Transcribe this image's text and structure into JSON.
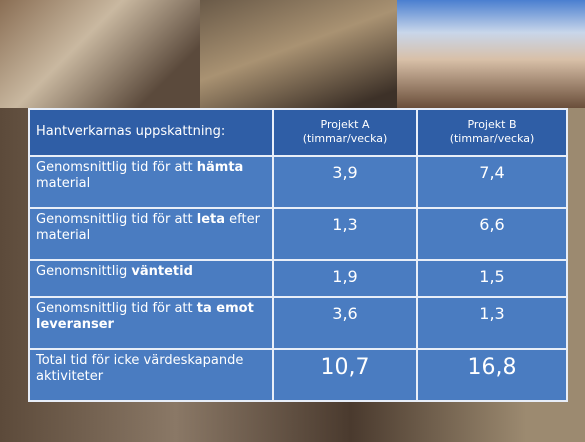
{
  "table": {
    "header": [
      "Hantverkarnas uppskattning:",
      "Projekt A\n(timmar/vecka)",
      "Projekt B\n(timmar/vecka)"
    ],
    "rows": [
      {
        "label": {
          "before": "Genomsnittlig tid för att",
          "bold": "hämta",
          "after": "material"
        },
        "a": "3,9",
        "b": "7,4"
      },
      {
        "label": {
          "before": "Genomsnittlig tid för att",
          "bold": "leta",
          "after": "efter material"
        },
        "a": "1,3",
        "b": "6,6"
      },
      {
        "label": {
          "before": "Genomsnittlig",
          "bold": "väntetid"
        },
        "a": "1,9",
        "b": "1,5"
      },
      {
        "label": {
          "before": "Genomsnittlig tid för att",
          "bold": "ta emot leveranser"
        },
        "a": "3,6",
        "b": "1,3"
      },
      {
        "label": {
          "before": "Total tid för icke värdeskapande aktiviteter"
        },
        "a": "10,7",
        "b": "16,8"
      }
    ]
  }
}
